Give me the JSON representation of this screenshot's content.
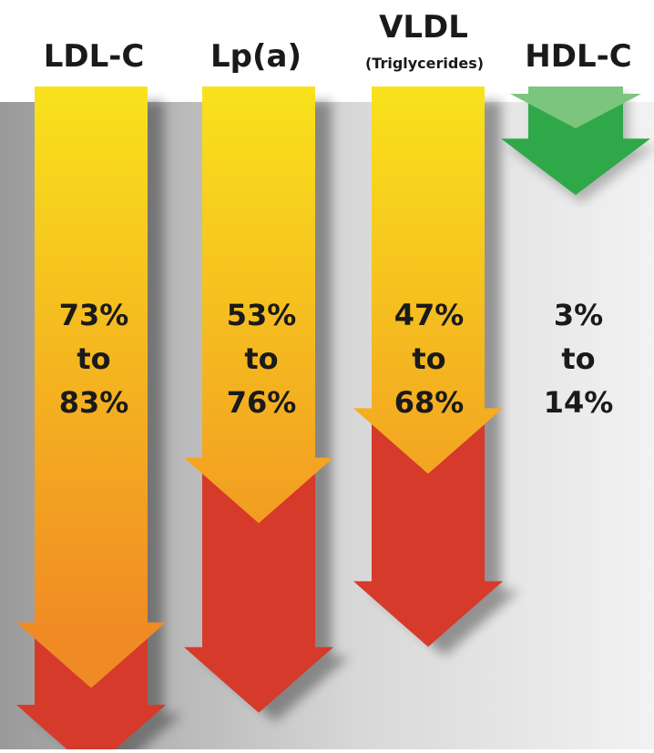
{
  "chart_data": {
    "type": "bar",
    "title": "",
    "categories": [
      "LDL-C",
      "Lp(a)",
      "VLDL",
      "HDL-C"
    ],
    "category_sublabels": [
      "",
      "",
      "(Triglycerides)",
      ""
    ],
    "series": [
      {
        "name": "",
        "low": [
          73,
          53,
          47,
          3
        ],
        "high": [
          83,
          76,
          68,
          14
        ]
      }
    ],
    "value_labels": [
      {
        "low": "73%",
        "to": "to",
        "high": "83%"
      },
      {
        "low": "53%",
        "to": "to",
        "high": "76%"
      },
      {
        "low": "47%",
        "to": "to",
        "high": "68%"
      },
      {
        "low": "3%",
        "to": "to",
        "high": "14%"
      }
    ],
    "direction": "down",
    "colors": {
      "reduction_gradient_top": "#f9e21c",
      "reduction_gradient_bottom": "#f08a24",
      "reduction_tip": "#d63a2a",
      "hdl_arrow": "#2fa84a",
      "hdl_arrow_light": "#7cc57e",
      "shadow": "#8a8a8a"
    }
  }
}
